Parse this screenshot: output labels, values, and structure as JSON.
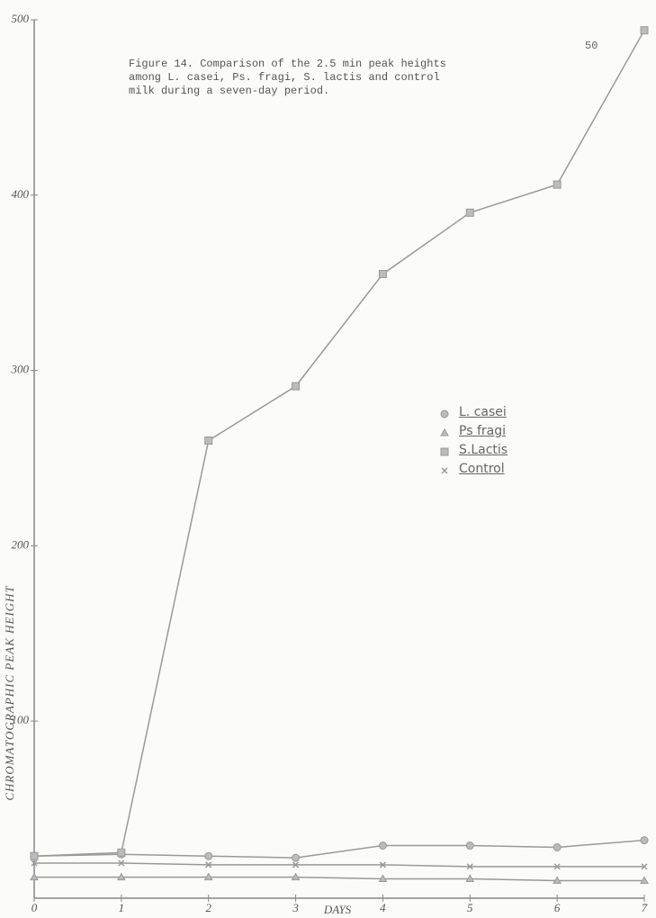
{
  "chart_data": {
    "type": "line",
    "title": "Figure 14.  Comparison of the 2.5 min peak heights among L. casei, Ps. fragi, S. lactis and control milk during a seven-day period.",
    "page_number": "50",
    "xlabel": "DAYS",
    "ylabel": "CHROMATOGRAPHIC PEAK HEIGHT",
    "x": [
      0,
      1,
      2,
      3,
      4,
      5,
      6,
      7
    ],
    "xlim": [
      0,
      7
    ],
    "xticks": [
      0,
      1,
      2,
      3,
      4,
      5,
      6,
      7
    ],
    "ylim": [
      0,
      500
    ],
    "yticks": [
      100,
      200,
      300,
      400,
      500
    ],
    "series": [
      {
        "name": "L. casei",
        "color": "#999",
        "marker": "circle",
        "values": [
          23,
          24,
          23,
          22,
          29,
          29,
          28,
          32
        ]
      },
      {
        "name": "Ps fragi",
        "color": "#999",
        "marker": "triangle",
        "values": [
          11,
          11,
          11,
          11,
          10,
          10,
          9,
          9
        ]
      },
      {
        "name": "S.Lactis",
        "color": "#999",
        "marker": "square",
        "values": [
          23,
          25,
          260,
          291,
          355,
          390,
          406,
          494
        ]
      },
      {
        "name": "Control",
        "color": "#999",
        "marker": "x",
        "values": [
          19,
          19,
          18,
          18,
          18,
          17,
          17,
          17
        ]
      }
    ]
  }
}
